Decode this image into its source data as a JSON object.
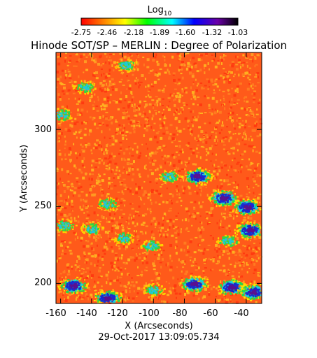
{
  "colorbar": {
    "title_main": "Log",
    "title_sub": "10",
    "tick_labels": [
      "-2.75",
      "-2.46",
      "-2.18",
      "-1.89",
      "-1.60",
      "-1.32",
      "-1.03"
    ],
    "range": [
      -2.75,
      -1.03
    ],
    "colormap": [
      "#ff0000",
      "#ff8800",
      "#ffff00",
      "#00ff00",
      "#00ffff",
      "#0000ff",
      "#6a00a8",
      "#000000"
    ]
  },
  "title": "Hinode SOT/SP – MERLIN : Degree of Polarization",
  "x_axis": {
    "label": "X (Arcseconds)",
    "ticks": [
      "-160",
      "-140",
      "-120",
      "-100",
      "-80",
      "-60",
      "-40"
    ],
    "tick_values": [
      -160,
      -140,
      -120,
      -100,
      -80,
      -60,
      -40
    ],
    "range": [
      -163,
      -30
    ]
  },
  "y_axis": {
    "label": "Y (Arcseconds)",
    "ticks": [
      "200",
      "250",
      "300"
    ],
    "tick_values": [
      200,
      250,
      300
    ],
    "range": [
      187,
      350
    ]
  },
  "timestamp": "29-Oct-2017 13:09:05.734",
  "map": {
    "background_color": "#ff5a1a",
    "speckle_colors": [
      "#ff3a10",
      "#ff7a20",
      "#ff9a22",
      "#ffb020"
    ],
    "active_regions": [
      {
        "x": -118,
        "y": 342,
        "level": "mixed"
      },
      {
        "x": -145,
        "y": 328,
        "level": "mixed"
      },
      {
        "x": -160,
        "y": 310,
        "level": "mixed"
      },
      {
        "x": -130,
        "y": 252,
        "level": "mixed"
      },
      {
        "x": -90,
        "y": 270,
        "level": "mixed"
      },
      {
        "x": -72,
        "y": 270,
        "level": "high"
      },
      {
        "x": -55,
        "y": 256,
        "level": "high"
      },
      {
        "x": -40,
        "y": 250,
        "level": "high"
      },
      {
        "x": -38,
        "y": 235,
        "level": "high"
      },
      {
        "x": -52,
        "y": 228,
        "level": "mixed"
      },
      {
        "x": -102,
        "y": 225,
        "level": "mixed"
      },
      {
        "x": -120,
        "y": 230,
        "level": "mixed"
      },
      {
        "x": -140,
        "y": 236,
        "level": "mixed"
      },
      {
        "x": -158,
        "y": 238,
        "level": "mixed"
      },
      {
        "x": -74,
        "y": 200,
        "level": "high"
      },
      {
        "x": -50,
        "y": 198,
        "level": "high"
      },
      {
        "x": -36,
        "y": 195,
        "level": "high"
      },
      {
        "x": -100,
        "y": 196,
        "level": "mixed"
      },
      {
        "x": -130,
        "y": 191,
        "level": "high"
      },
      {
        "x": -152,
        "y": 199,
        "level": "high"
      }
    ]
  }
}
